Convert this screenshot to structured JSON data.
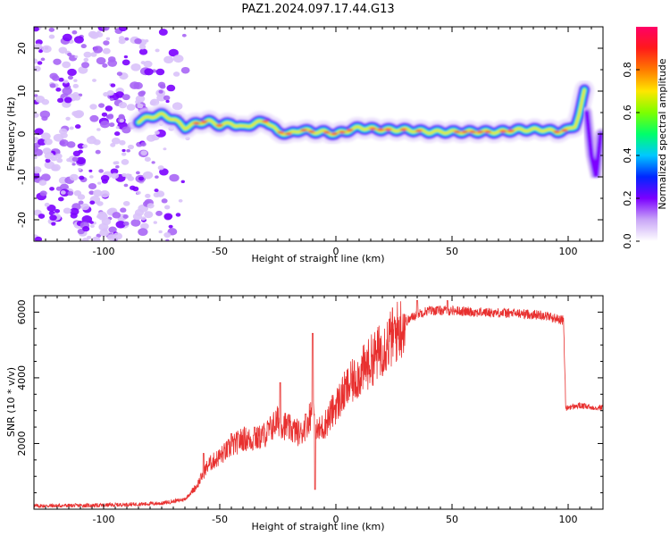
{
  "title": "PAZ1.2024.097.17.44.G13",
  "chart_data": [
    {
      "type": "heatmap",
      "xlabel": "Height of straight line (km)",
      "ylabel": "Frequency (Hz)",
      "xlim": [
        -130,
        115
      ],
      "ylim": [
        -25,
        25
      ],
      "x_ticks": [
        -100,
        -50,
        0,
        50,
        100
      ],
      "y_ticks": [
        -20,
        -10,
        0,
        10,
        20
      ],
      "colorbar": {
        "label": "Normalized spectral amplitude",
        "range": [
          0,
          1
        ],
        "ticks": [
          0.0,
          0.2,
          0.4,
          0.6,
          0.8
        ],
        "colormap": "rainbow",
        "stops": [
          "#ffffff",
          "#c9a6f7",
          "#7b00ff",
          "#0026ff",
          "#00c8ff",
          "#00ff6a",
          "#7dff00",
          "#ffe600",
          "#ff7a00",
          "#ff1a1a",
          "#ff0066"
        ]
      },
      "ridge": {
        "x": [
          -85,
          -80,
          -75,
          -70,
          -65,
          -60,
          -55,
          -50,
          -45,
          -40,
          -35,
          -30,
          -25,
          -20,
          -15,
          -10,
          -5,
          0,
          10,
          20,
          30,
          40,
          50,
          60,
          70,
          80,
          90,
          95,
          100,
          103,
          105,
          107
        ],
        "y": [
          3,
          4,
          4.5,
          3.5,
          1.5,
          2.5,
          3,
          2,
          2.5,
          1.5,
          2.5,
          3,
          0.5,
          0,
          1,
          0.5,
          0.5,
          0,
          1.5,
          1,
          1,
          0.5,
          0.5,
          0.5,
          0.5,
          1,
          1,
          0.5,
          1,
          2,
          5,
          10
        ]
      },
      "side_band": {
        "x": [
          108,
          110,
          112,
          114
        ],
        "y": [
          5,
          -5,
          -10,
          0
        ]
      },
      "noise_region_x": [
        -130,
        -60
      ]
    },
    {
      "type": "line",
      "xlabel": "Height of straight line (km)",
      "ylabel": "SNR (10 * v/v)",
      "xlim": [
        -130,
        115
      ],
      "ylim": [
        0,
        6500
      ],
      "x_ticks": [
        -100,
        -50,
        0,
        50,
        100
      ],
      "y_ticks": [
        2000,
        4000,
        6000
      ],
      "color": "#e8302f",
      "envelope": {
        "x": [
          -130,
          -100,
          -75,
          -65,
          -60,
          -55,
          -50,
          -45,
          -40,
          -35,
          -30,
          -25,
          -20,
          -15,
          -12,
          -10,
          -8,
          -5,
          0,
          5,
          10,
          15,
          20,
          25,
          30,
          35,
          40,
          50,
          60,
          70,
          80,
          90,
          95,
          98,
          99,
          100,
          105,
          110,
          115
        ],
        "y": [
          100,
          120,
          180,
          300,
          700,
          1350,
          1600,
          1900,
          2150,
          2100,
          2300,
          2700,
          2450,
          2300,
          2700,
          3050,
          2350,
          2550,
          3150,
          3700,
          4100,
          4500,
          4900,
          5300,
          5700,
          5950,
          6050,
          6050,
          6000,
          5980,
          5950,
          5900,
          5800,
          5750,
          3050,
          3100,
          3150,
          3100,
          3100
        ]
      },
      "spikes": [
        {
          "x": -57,
          "y": 1700
        },
        {
          "x": -45,
          "y": 2300
        },
        {
          "x": -35,
          "y": 2500
        },
        {
          "x": -24,
          "y": 3850
        },
        {
          "x": -13,
          "y": 2900
        },
        {
          "x": -10,
          "y": 5350
        },
        {
          "x": -9,
          "y": 600
        },
        {
          "x": 35,
          "y": 6350
        },
        {
          "x": 48,
          "y": 6350
        }
      ]
    }
  ]
}
